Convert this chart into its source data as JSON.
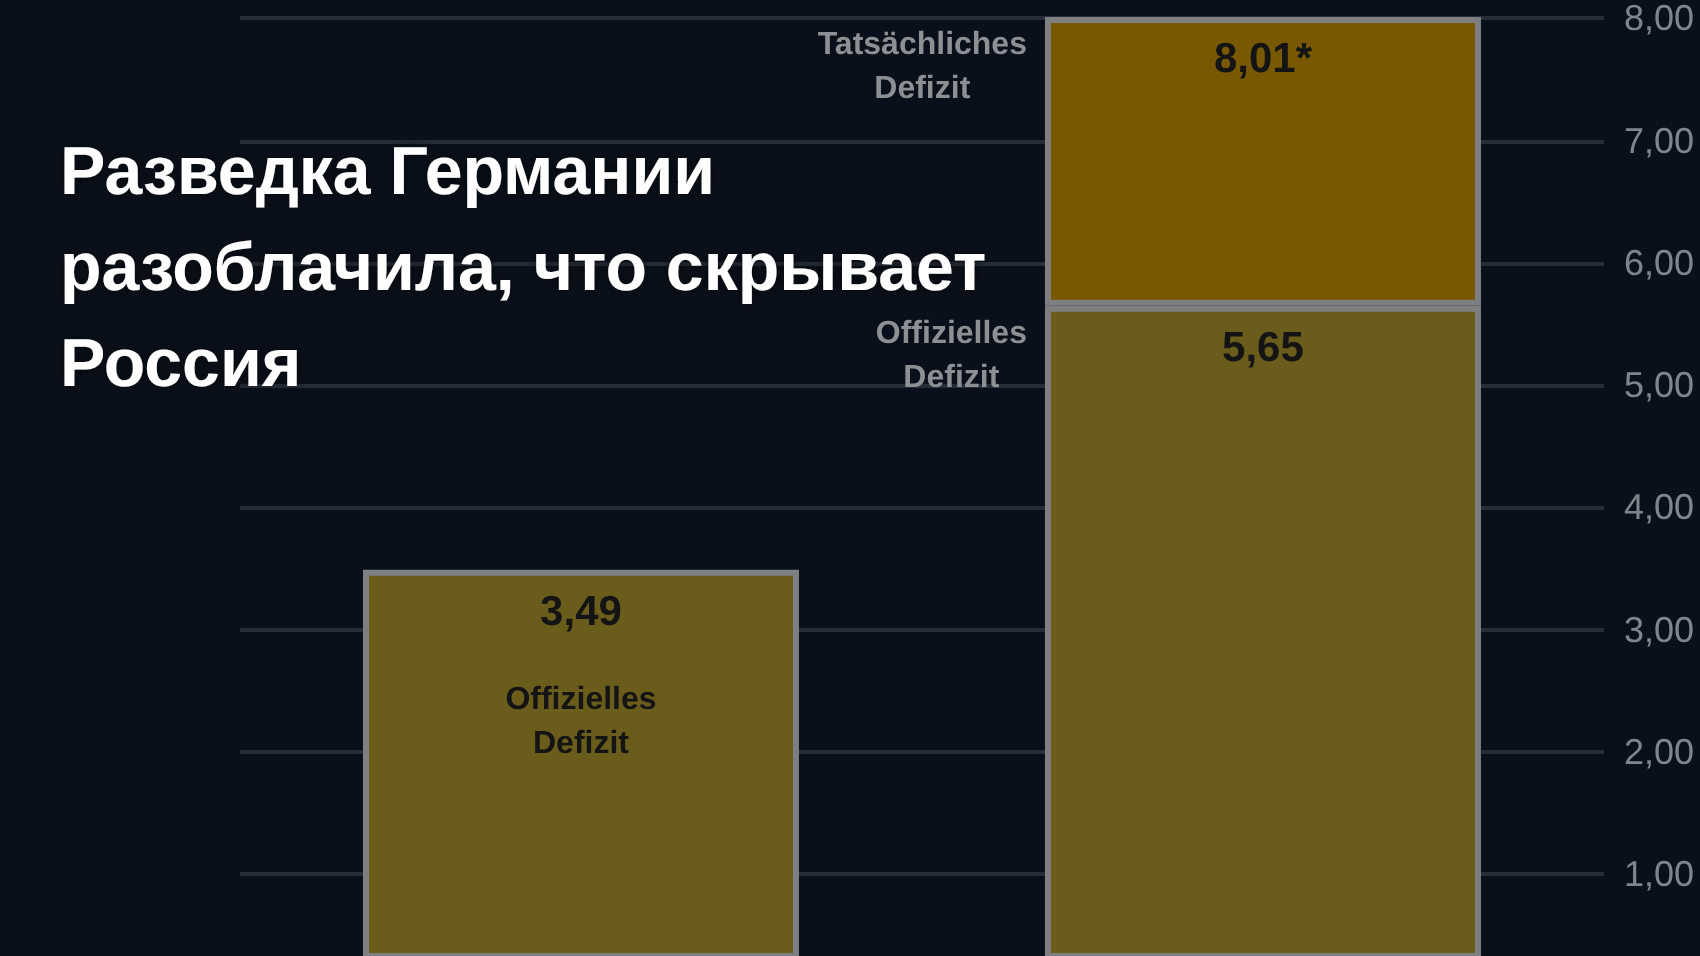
{
  "chart_data": {
    "type": "bar",
    "title": "Разведка Германии разоблачила, что скрывает Россия",
    "categories": [
      null,
      null
    ],
    "series": [
      {
        "name": "Offizielles Defizit",
        "color": "#6a5d1c",
        "values": [
          3.49,
          5.65
        ],
        "value_labels": [
          "3,49",
          "5,65"
        ]
      },
      {
        "name": "Tatsächliches Defizit",
        "color": "#785800",
        "values": [
          null,
          2.36
        ]
      }
    ],
    "stacked": true,
    "totals": [
      null,
      "8,01*"
    ],
    "ylim": [
      0.33,
      8.15
    ],
    "yticks": [
      {
        "value": 1,
        "label": "1,00"
      },
      {
        "value": 2,
        "label": "2,00"
      },
      {
        "value": 3,
        "label": "3,00"
      },
      {
        "value": 4,
        "label": "4,00"
      },
      {
        "value": 5,
        "label": "5,00"
      },
      {
        "value": 6,
        "label": "6,00"
      },
      {
        "value": 7,
        "label": "7,00"
      },
      {
        "value": 8,
        "label": "8,00"
      }
    ],
    "grid": "y",
    "tick_labels": "y"
  }
}
